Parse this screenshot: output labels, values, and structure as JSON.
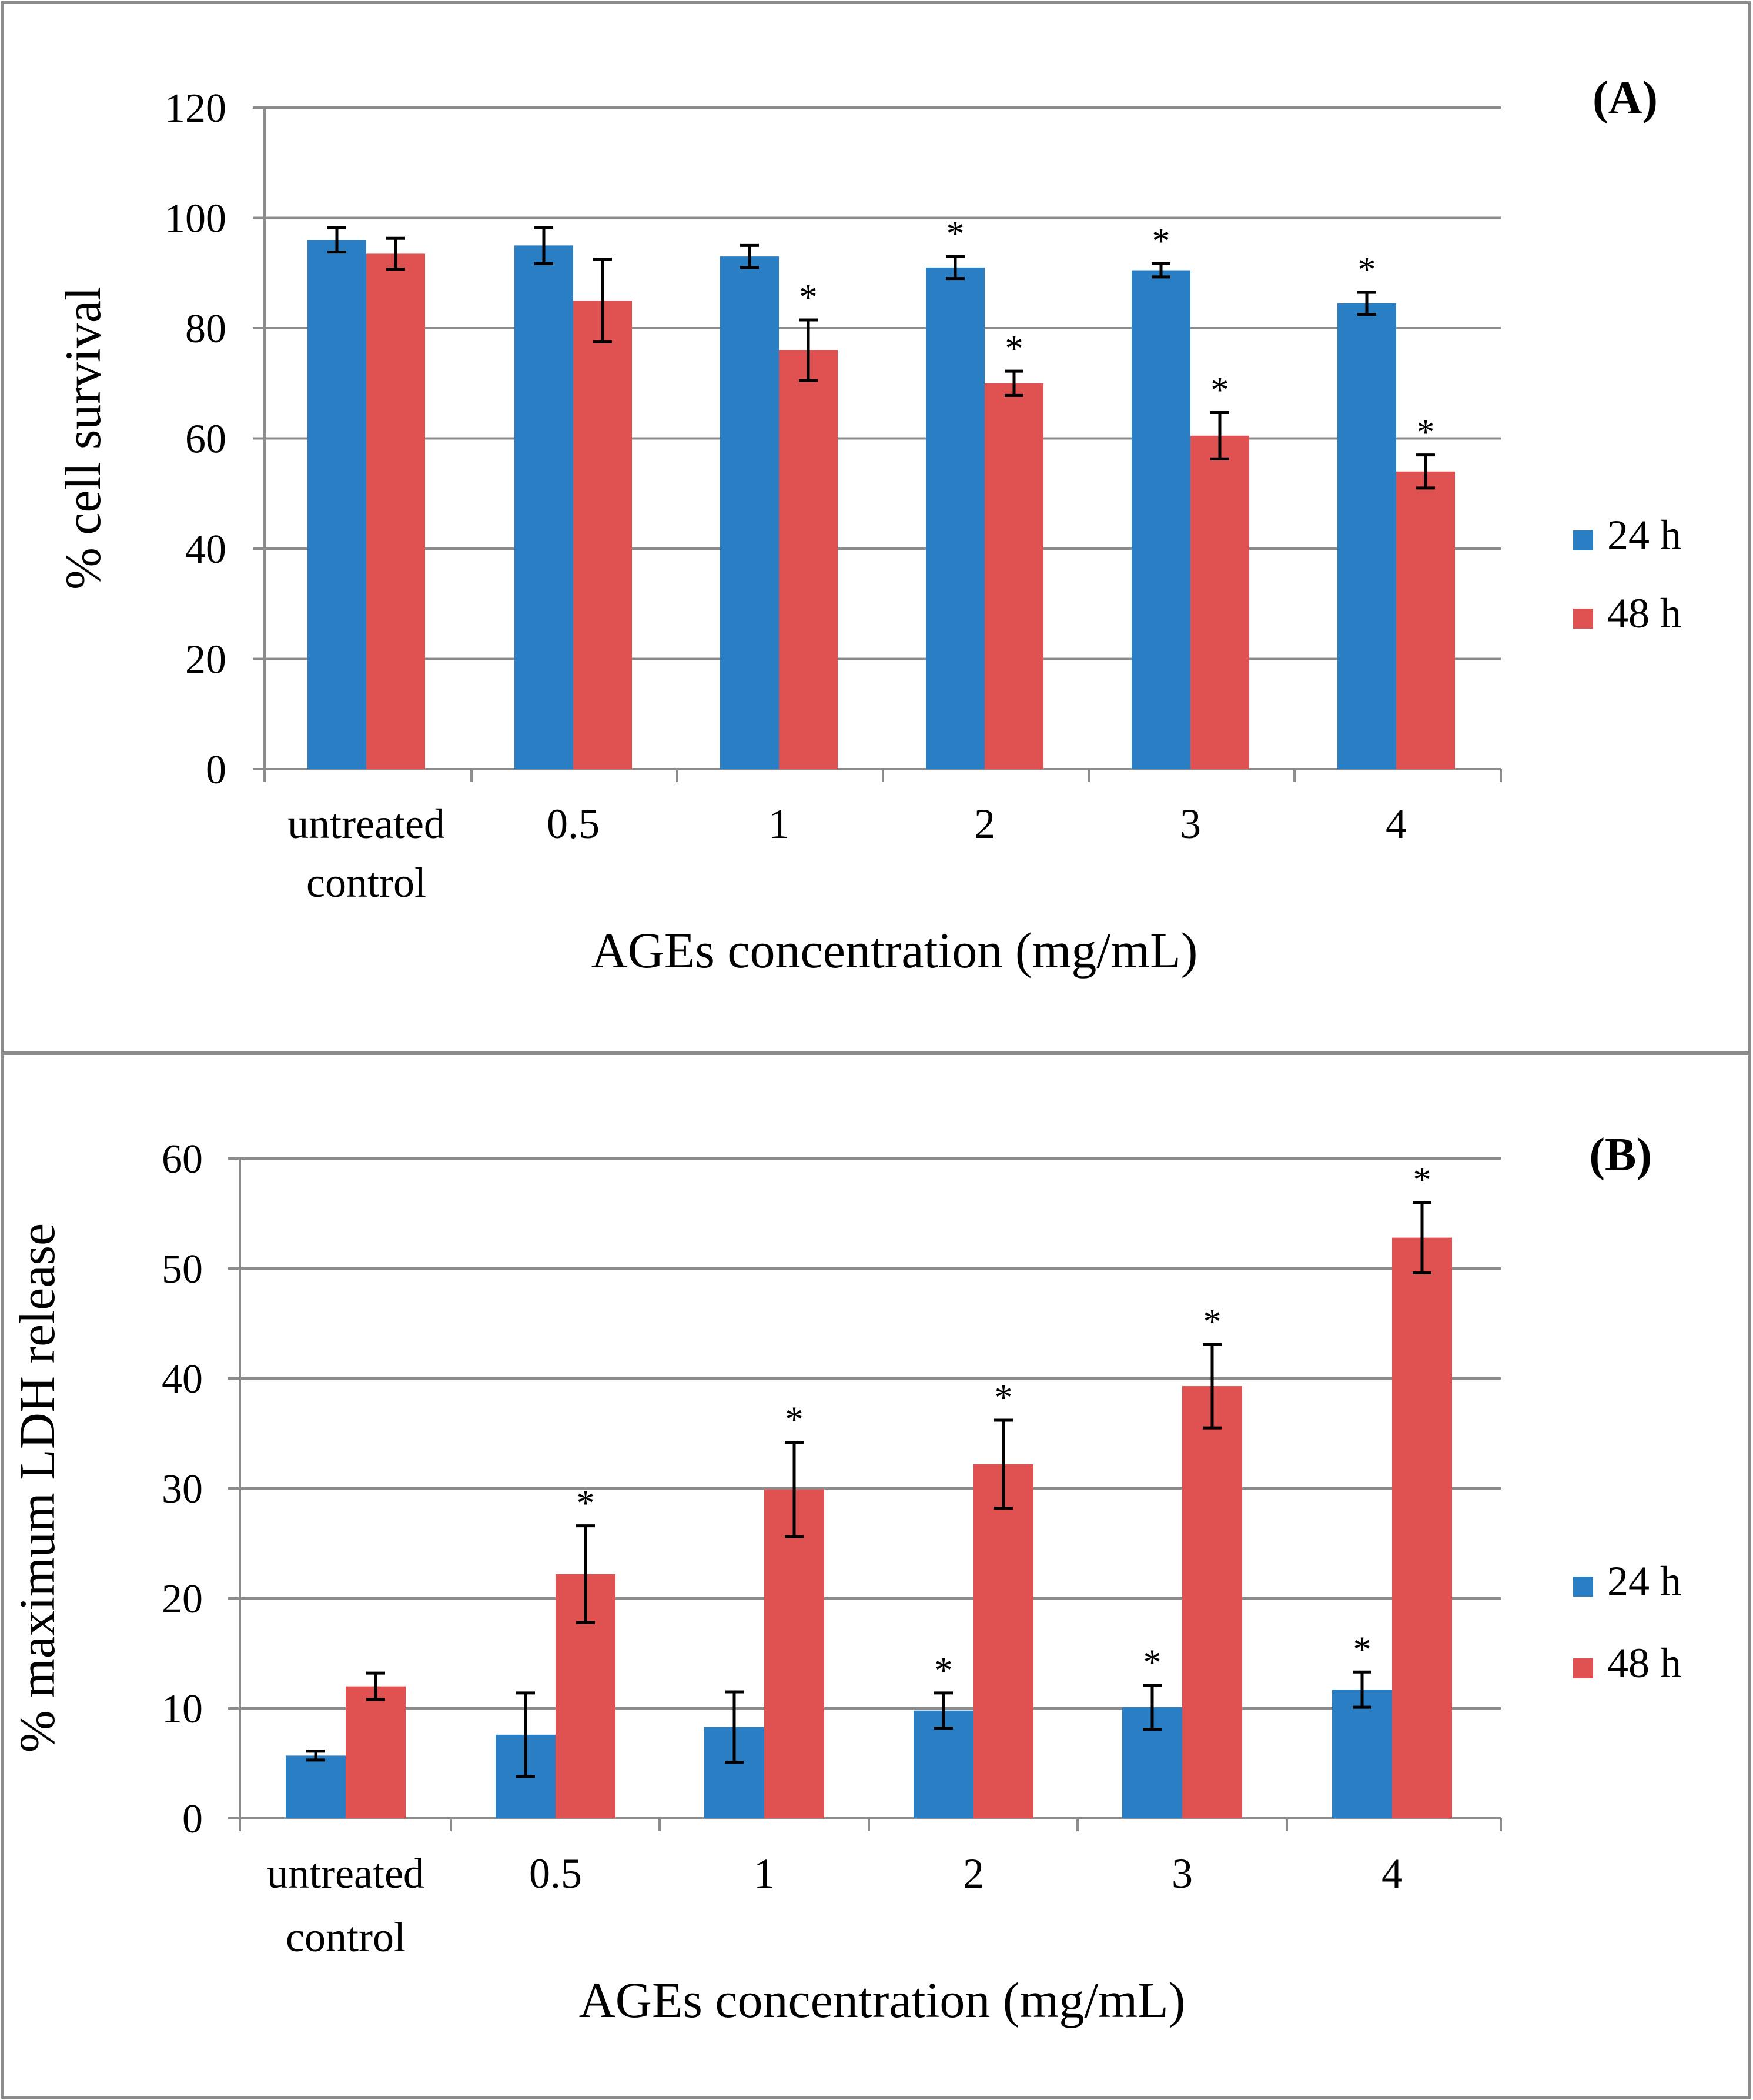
{
  "charts": [
    {
      "panel_label": "(A)",
      "ylabel": "% cell survival",
      "xlabel": "AGEs concentration (mg/mL)",
      "yticks": [
        "0",
        "20",
        "40",
        "60",
        "80",
        "100",
        "120"
      ],
      "categories": [
        [
          "untreated",
          "control"
        ],
        [
          "0.5"
        ],
        [
          "1"
        ],
        [
          "2"
        ],
        [
          "3"
        ],
        [
          "4"
        ]
      ],
      "legend": [
        "24 h",
        "48 h"
      ],
      "significance_mark": "*"
    },
    {
      "panel_label": "(B)",
      "ylabel": "% maximum LDH release",
      "xlabel": "AGEs concentration (mg/mL)",
      "yticks": [
        "0",
        "10",
        "20",
        "30",
        "40",
        "50",
        "60"
      ],
      "categories": [
        [
          "untreated",
          "control"
        ],
        [
          "0.5"
        ],
        [
          "1"
        ],
        [
          "2"
        ],
        [
          "3"
        ],
        [
          "4"
        ]
      ],
      "legend": [
        "24 h",
        "48 h"
      ],
      "significance_mark": "*"
    }
  ],
  "chart_data": [
    {
      "type": "bar",
      "title": "(A)",
      "xlabel": "AGEs concentration (mg/mL)",
      "ylabel": "% cell survival",
      "categories": [
        "untreated control",
        "0.5",
        "1",
        "2",
        "3",
        "4"
      ],
      "ylim": [
        0,
        120
      ],
      "grid": true,
      "legend_position": "right",
      "series": [
        {
          "name": "24 h",
          "color": "#2a7ec4",
          "values": [
            96,
            95,
            93,
            91,
            90.5,
            84.5
          ],
          "errors": [
            2.2,
            3.3,
            2.0,
            2.0,
            1.2,
            2.0
          ],
          "significant": [
            false,
            false,
            false,
            true,
            true,
            true
          ]
        },
        {
          "name": "48 h",
          "color": "#e05252",
          "values": [
            93.5,
            85,
            76,
            70,
            60.5,
            54
          ],
          "errors": [
            2.8,
            7.5,
            5.5,
            2.2,
            4.2,
            3.0
          ],
          "significant": [
            false,
            false,
            true,
            true,
            true,
            true
          ]
        }
      ]
    },
    {
      "type": "bar",
      "title": "(B)",
      "xlabel": "AGEs concentration (mg/mL)",
      "ylabel": "% maximum LDH release",
      "categories": [
        "untreated control",
        "0.5",
        "1",
        "2",
        "3",
        "4"
      ],
      "ylim": [
        0,
        60
      ],
      "grid": true,
      "legend_position": "right",
      "series": [
        {
          "name": "24 h",
          "color": "#2a7ec4",
          "values": [
            5.7,
            7.6,
            8.3,
            9.8,
            10.1,
            11.7
          ],
          "errors": [
            0.4,
            3.8,
            3.2,
            1.6,
            2.0,
            1.6
          ],
          "significant": [
            false,
            false,
            false,
            true,
            true,
            true
          ]
        },
        {
          "name": "48 h",
          "color": "#e05252",
          "values": [
            12.0,
            22.2,
            29.9,
            32.2,
            39.3,
            52.8
          ],
          "errors": [
            1.2,
            4.4,
            4.3,
            4.0,
            3.8,
            3.2
          ],
          "significant": [
            false,
            true,
            true,
            true,
            true,
            true
          ]
        }
      ]
    }
  ]
}
